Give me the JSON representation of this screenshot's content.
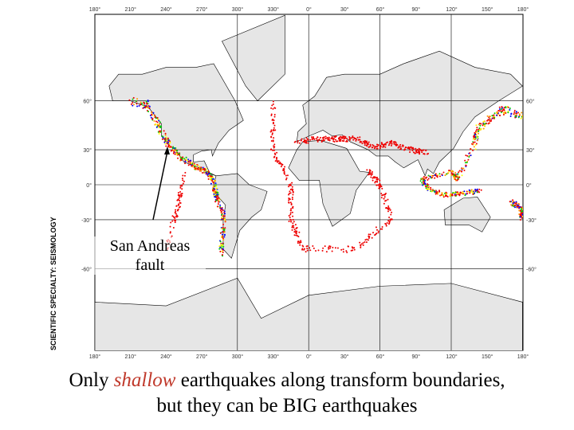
{
  "map": {
    "side_title": "SCIENTIFIC SPECIALTY: SEISMOLOGY",
    "lon_labels": [
      "180°",
      "210°",
      "240°",
      "270°",
      "300°",
      "330°",
      "0°",
      "30°",
      "60°",
      "90°",
      "120°",
      "150°",
      "180°"
    ],
    "lat_labels": [
      "60°",
      "30°",
      "0°",
      "-30°",
      "-60°"
    ]
  },
  "annotation": "San Andreas fault",
  "caption": {
    "line1": [
      "Only ",
      "shallow",
      " earthquakes along transform boundaries,"
    ],
    "line2": "but they can be BIG earthquakes"
  }
}
